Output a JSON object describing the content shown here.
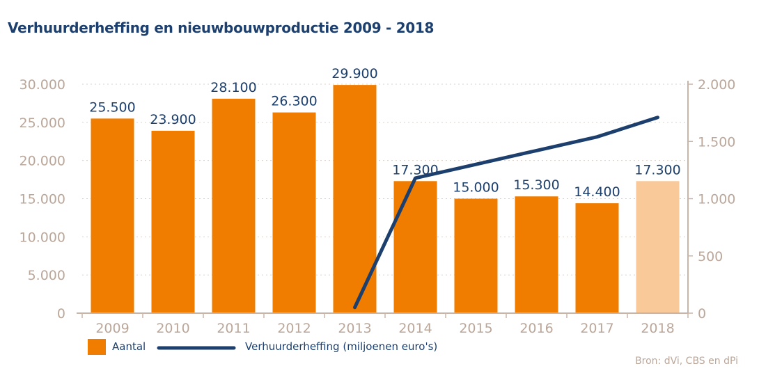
{
  "title": "Verhuurderheffing en nieuwbouwproductie 2009 - 2018",
  "source": "Bron: dVi, CBS en dPi",
  "colors": {
    "bar": "#f07d00",
    "bar_highlight": "#f9c99a",
    "line": "#1c3f6e",
    "axis": "#c9b5a8",
    "grid": "#d9cfc8",
    "title": "#1c3f6e"
  },
  "chart_data": {
    "type": "bar",
    "categories": [
      "2009",
      "2010",
      "2011",
      "2012",
      "2013",
      "2014",
      "2015",
      "2016",
      "2017",
      "2018"
    ],
    "series": [
      {
        "name": "Aantal",
        "type": "bar",
        "axis": "left",
        "values": [
          25500,
          23900,
          28100,
          26300,
          29900,
          17300,
          15000,
          15300,
          14400,
          17300
        ],
        "labels": [
          "25.500",
          "23.900",
          "28.100",
          "26.300",
          "29.900",
          "17.300",
          "15.000",
          "15.300",
          "14.400",
          "17.300"
        ],
        "highlight_index": 9
      },
      {
        "name": "Verhuurderheffing (miljoenen euro's)",
        "type": "line",
        "axis": "right",
        "values": [
          null,
          null,
          null,
          null,
          50,
          1180,
          1300,
          1420,
          1540,
          1710
        ]
      }
    ],
    "y_left": {
      "range": [
        0,
        30000
      ],
      "ticks": [
        0,
        5000,
        10000,
        15000,
        20000,
        25000,
        30000
      ],
      "tick_labels": [
        "0",
        "5.000",
        "10.000",
        "15.000",
        "20.000",
        "25.000",
        "30.000"
      ]
    },
    "y_right": {
      "range": [
        0,
        2000
      ],
      "ticks": [
        0,
        500,
        1000,
        1500,
        2000
      ],
      "tick_labels": [
        "0",
        "500",
        "1.000",
        "1.500",
        "2.000"
      ]
    },
    "grid": true,
    "legend_position": "bottom-left"
  }
}
